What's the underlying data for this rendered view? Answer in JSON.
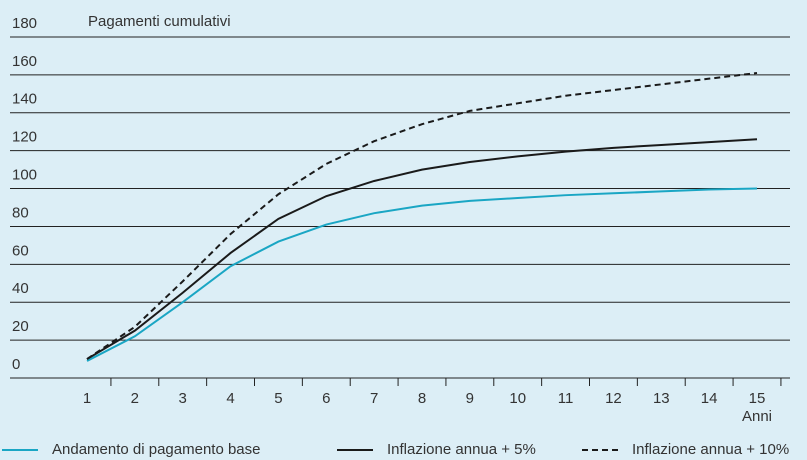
{
  "chart_data": {
    "type": "line",
    "y_label": "Pagamenti cumulativi",
    "x_label": "Anni",
    "x": [
      1,
      2,
      3,
      4,
      5,
      6,
      7,
      8,
      9,
      10,
      11,
      12,
      13,
      14,
      15
    ],
    "xlim": [
      1,
      15
    ],
    "xticks": [
      1,
      2,
      3,
      4,
      5,
      6,
      7,
      8,
      9,
      10,
      11,
      12,
      13,
      14,
      15
    ],
    "ylim": [
      0,
      180
    ],
    "yticks": [
      0,
      20,
      40,
      60,
      80,
      100,
      120,
      140,
      160,
      180
    ],
    "grid": true,
    "legend": "bottom",
    "series": [
      {
        "name": "Andamento di pagamento base",
        "color": "#1aa6c4",
        "dash": "solid",
        "values": [
          9,
          22,
          40,
          59,
          72,
          81,
          87,
          91,
          93.5,
          95,
          96.5,
          97.5,
          98.5,
          99.5,
          100
        ]
      },
      {
        "name": "Inflazione annua + 5%",
        "color": "#1a1a1a",
        "dash": "solid",
        "values": [
          10,
          25,
          45,
          66,
          84,
          96,
          104,
          110,
          114,
          117,
          119.5,
          121.5,
          123,
          124.5,
          126
        ]
      },
      {
        "name": "Inflazione annua + 10%",
        "color": "#1a1a1a",
        "dash": "dashed",
        "values": [
          10,
          27,
          51,
          76,
          97,
          113,
          125,
          134,
          141,
          145,
          149,
          152,
          155,
          158,
          161
        ]
      }
    ]
  }
}
